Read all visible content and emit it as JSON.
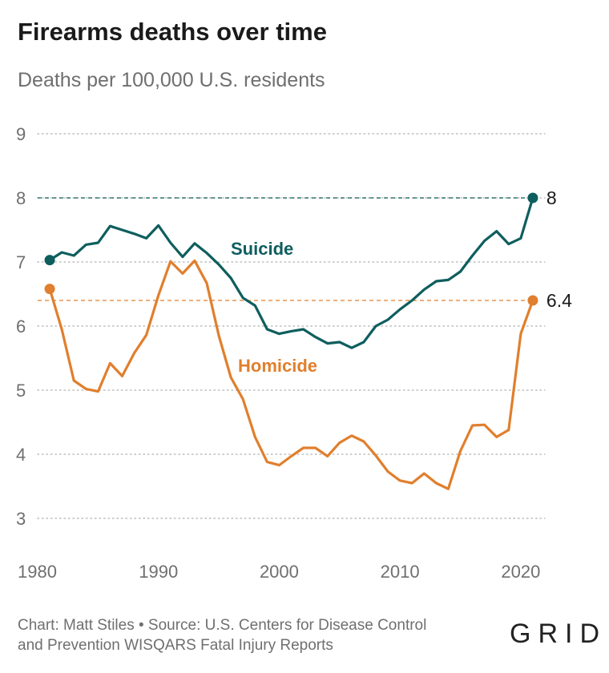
{
  "title": "Firearms deaths over time",
  "subtitle": "Deaths per 100,000 U.S. residents",
  "footer": {
    "line1": "Chart: Matt Stiles • Source: U.S. Centers for Disease Control",
    "line2": "and Prevention WISQARS Fatal Injury Reports"
  },
  "logo": "GRID",
  "colors": {
    "suicide": "#0f5e5e",
    "homicide": "#e07f2d",
    "grid": "#bdbdbd",
    "tick": "#6f6f6f"
  },
  "chart_data": {
    "type": "line",
    "xlim": [
      1980,
      2022
    ],
    "ylim": [
      3,
      9
    ],
    "x_ticks": [
      1980,
      1990,
      2000,
      2010,
      2020
    ],
    "y_ticks": [
      3,
      4,
      5,
      6,
      7,
      8,
      9
    ],
    "grid": true,
    "x": [
      1981,
      1982,
      1983,
      1984,
      1985,
      1986,
      1987,
      1988,
      1989,
      1990,
      1991,
      1992,
      1993,
      1994,
      1995,
      1996,
      1997,
      1998,
      1999,
      2000,
      2001,
      2002,
      2003,
      2004,
      2005,
      2006,
      2007,
      2008,
      2009,
      2010,
      2011,
      2012,
      2013,
      2014,
      2015,
      2016,
      2017,
      2018,
      2019,
      2020,
      2021
    ],
    "series": [
      {
        "name": "Suicide",
        "color": "#0f5e5e",
        "end_label": "8",
        "values": [
          7.03,
          7.15,
          7.1,
          7.27,
          7.3,
          7.56,
          7.5,
          7.44,
          7.37,
          7.57,
          7.3,
          7.08,
          7.29,
          7.14,
          6.96,
          6.75,
          6.44,
          6.32,
          5.95,
          5.88,
          5.92,
          5.95,
          5.83,
          5.73,
          5.75,
          5.66,
          5.75,
          6.0,
          6.1,
          6.26,
          6.4,
          6.57,
          6.7,
          6.72,
          6.85,
          7.1,
          7.33,
          7.48,
          7.28,
          7.37,
          8.0
        ]
      },
      {
        "name": "Homicide",
        "color": "#e07f2d",
        "end_label": "6.4",
        "values": [
          6.58,
          5.95,
          5.15,
          5.02,
          4.98,
          5.42,
          5.22,
          5.58,
          5.86,
          6.48,
          7.01,
          6.82,
          7.02,
          6.67,
          5.85,
          5.2,
          4.86,
          4.27,
          3.88,
          3.83,
          3.97,
          4.1,
          4.1,
          3.97,
          4.18,
          4.29,
          4.2,
          3.98,
          3.73,
          3.59,
          3.55,
          3.7,
          3.55,
          3.46,
          4.05,
          4.45,
          4.46,
          4.27,
          4.38,
          5.88,
          6.4
        ]
      }
    ]
  }
}
